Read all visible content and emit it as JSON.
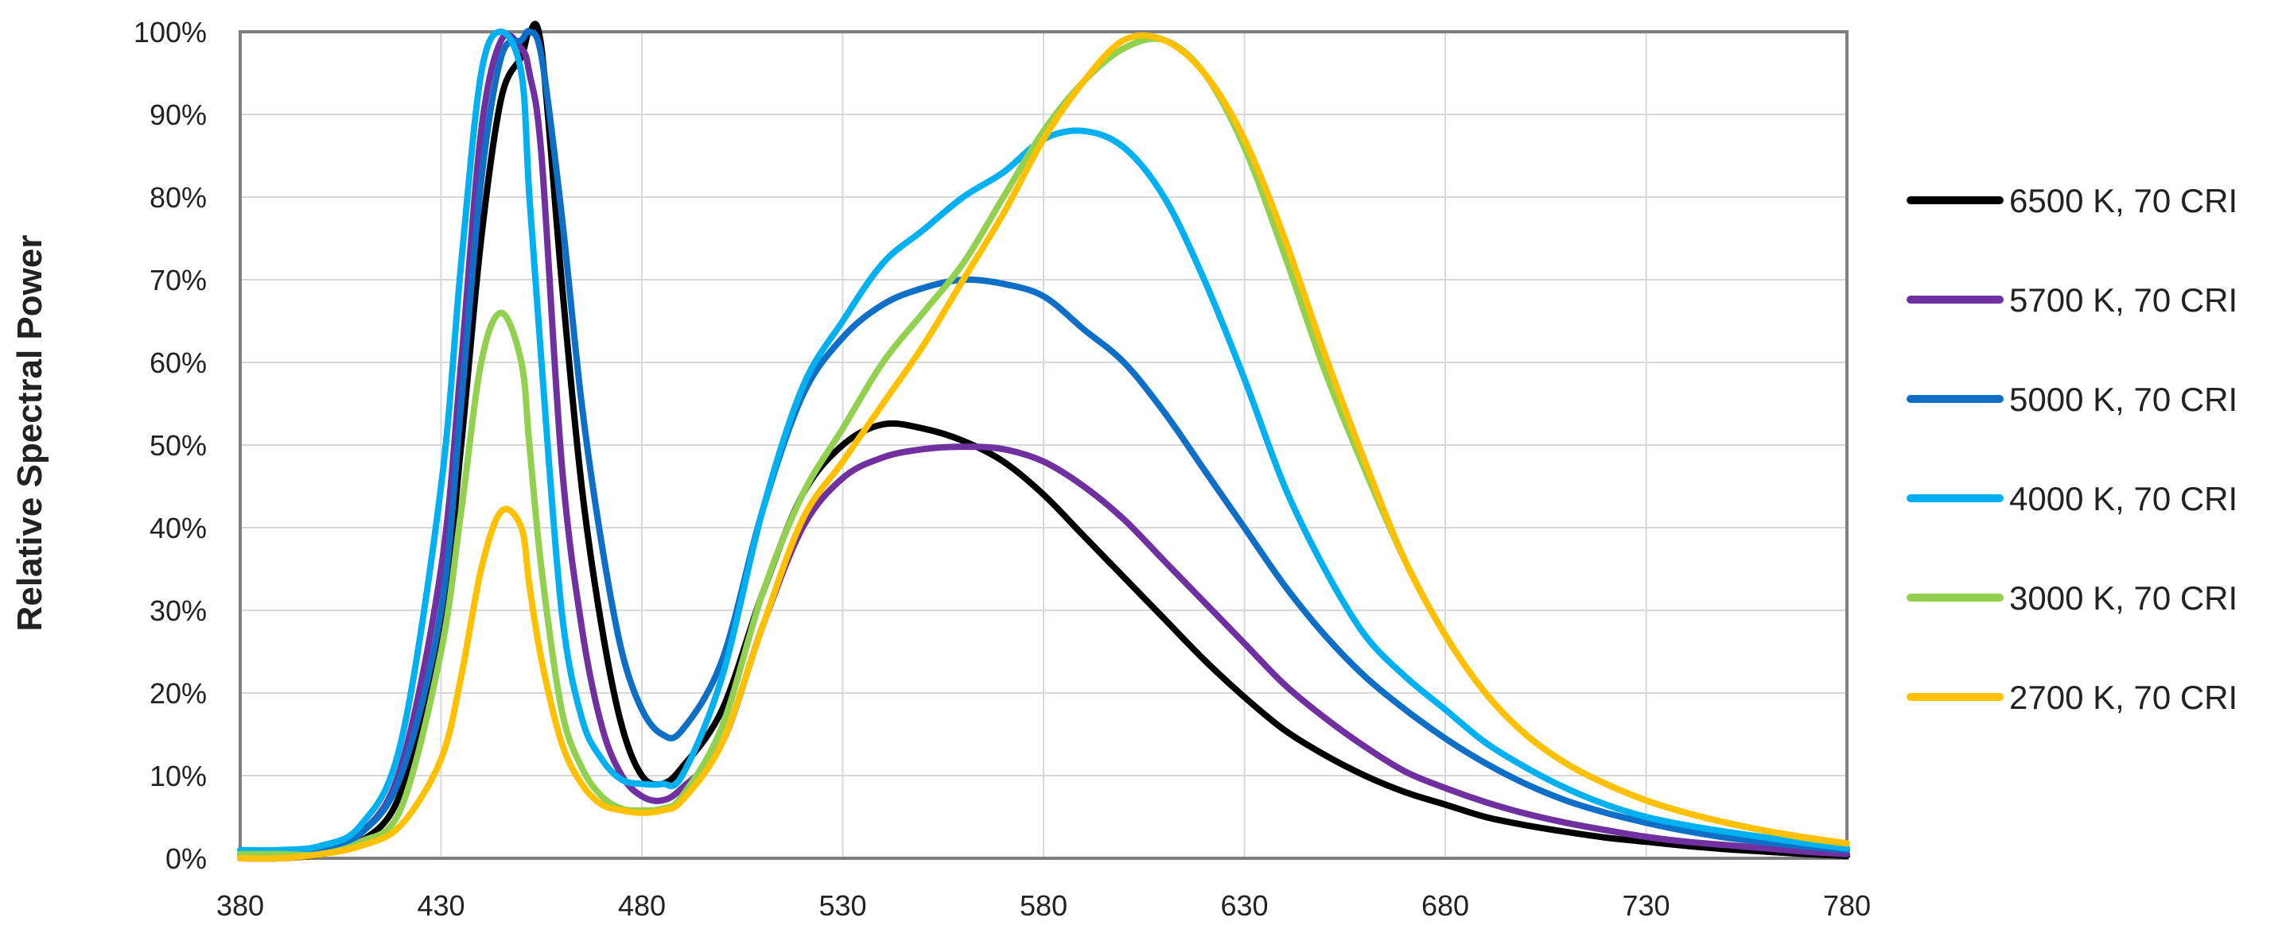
{
  "chart_data": {
    "type": "line",
    "title": "",
    "xlabel": "",
    "ylabel": "Relative Spectral Power",
    "xlim": [
      380,
      780
    ],
    "ylim": [
      0,
      100
    ],
    "x_ticks": [
      "380",
      "430",
      "480",
      "530",
      "580",
      "630",
      "680",
      "730",
      "780"
    ],
    "y_ticks": [
      "0%",
      "10%",
      "20%",
      "30%",
      "40%",
      "50%",
      "60%",
      "70%",
      "80%",
      "90%",
      "100%"
    ],
    "grid": true,
    "legend_position": "right",
    "x": [
      380,
      390,
      400,
      410,
      420,
      430,
      435,
      440,
      445,
      450,
      452,
      455,
      460,
      465,
      470,
      475,
      480,
      485,
      490,
      500,
      510,
      520,
      530,
      540,
      550,
      560,
      570,
      580,
      590,
      600,
      610,
      620,
      630,
      640,
      650,
      660,
      670,
      680,
      690,
      700,
      710,
      720,
      730,
      740,
      750,
      760,
      770,
      780
    ],
    "series": [
      {
        "name": "6500 K, 70 CRI",
        "color": "#000000",
        "values": [
          0,
          0,
          0.5,
          2,
          8,
          28,
          50,
          75,
          92,
          97,
          100,
          98,
          70,
          45,
          28,
          16,
          10,
          9,
          11,
          18,
          32,
          44,
          50,
          52.5,
          52,
          50.5,
          48,
          44,
          39,
          34,
          29,
          24,
          19.5,
          15.5,
          12.5,
          10,
          8,
          6.5,
          5,
          4,
          3.2,
          2.5,
          2,
          1.5,
          1.1,
          0.8,
          0.5,
          0.3
        ]
      },
      {
        "name": "5700 K, 70 CRI",
        "color": "#7030A0",
        "values": [
          0.5,
          0.5,
          1,
          3,
          11,
          35,
          60,
          88,
          99,
          98,
          95,
          85,
          48,
          28,
          16,
          10,
          7.5,
          7,
          8.5,
          14,
          28,
          40,
          46,
          48.5,
          49.5,
          49.8,
          49.5,
          48,
          45,
          41,
          36,
          31,
          26,
          21,
          17,
          13.5,
          10.5,
          8.5,
          6.8,
          5.4,
          4.3,
          3.4,
          2.6,
          2,
          1.6,
          1.2,
          0.8,
          0.5
        ]
      },
      {
        "name": "5000 K, 70 CRI",
        "color": "#0F6FC6",
        "values": [
          0.5,
          0.5,
          1,
          3,
          10,
          30,
          55,
          82,
          97,
          99,
          100,
          97,
          78,
          55,
          38,
          25,
          18,
          15,
          15.5,
          24,
          42,
          56,
          63,
          67,
          69,
          70,
          69.5,
          68,
          64,
          60,
          54,
          47,
          40,
          33,
          27,
          22,
          18,
          14.5,
          11.5,
          9,
          7,
          5.5,
          4.3,
          3.3,
          2.5,
          1.9,
          1.4,
          1
        ]
      },
      {
        "name": "4000 K, 70 CRI",
        "color": "#00B0F0",
        "values": [
          1,
          1,
          1.5,
          4,
          14,
          45,
          72,
          95,
          100,
          95,
          80,
          60,
          30,
          17,
          12,
          9.5,
          9,
          9,
          10,
          22,
          42,
          57,
          65,
          72,
          76,
          80,
          83,
          87,
          88,
          86,
          80,
          70,
          58,
          45,
          35,
          27,
          22,
          18,
          14,
          11,
          8.5,
          6.5,
          5,
          4,
          3.2,
          2.5,
          1.8,
          1.2
        ]
      },
      {
        "name": "3000 K, 70 CRI",
        "color": "#92D050",
        "values": [
          0.5,
          0.5,
          0.5,
          2,
          6,
          25,
          42,
          60,
          66,
          60,
          50,
          35,
          18,
          11,
          7.5,
          6,
          5.8,
          6,
          7.5,
          16,
          32,
          44,
          52,
          60,
          66,
          72,
          80,
          88,
          94,
          98,
          99,
          95,
          86,
          73,
          59,
          47,
          36,
          27,
          20,
          15,
          11.5,
          9,
          7,
          5.5,
          4.3,
          3.3,
          2.4,
          1.8
        ]
      },
      {
        "name": "2700 K, 70 CRI",
        "color": "#FFC000",
        "values": [
          0,
          0,
          0.5,
          1.5,
          4,
          12,
          22,
          35,
          42,
          40,
          33,
          24,
          14,
          9,
          6.5,
          5.8,
          5.5,
          5.8,
          7,
          14,
          28,
          41,
          48,
          55,
          62,
          70,
          78,
          87,
          94,
          99,
          99,
          95,
          87,
          75,
          61,
          48,
          36,
          27,
          20,
          15,
          11.5,
          9,
          7,
          5.5,
          4.3,
          3.3,
          2.5,
          1.8
        ]
      }
    ]
  }
}
